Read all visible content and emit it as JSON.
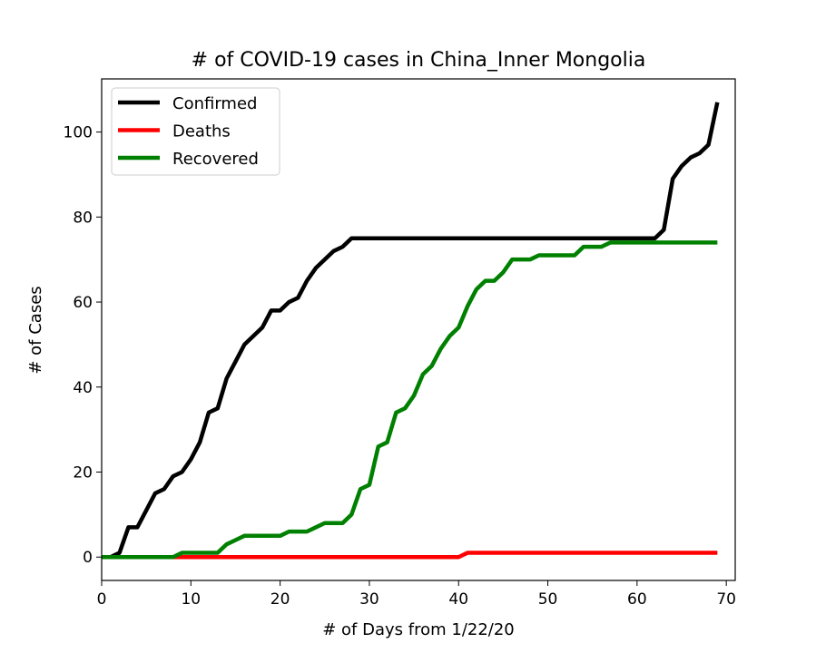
{
  "chart_data": {
    "type": "line",
    "title": "# of COVID-19 cases in China_Inner Mongolia",
    "xlabel": "# of Days from 1/22/20",
    "ylabel": "# of Cases",
    "xlim": [
      0,
      71
    ],
    "ylim": [
      -5.5,
      112.5
    ],
    "xticks": [
      0,
      10,
      20,
      30,
      40,
      50,
      60,
      70
    ],
    "yticks": [
      0,
      20,
      40,
      60,
      80,
      100
    ],
    "grid": false,
    "legend_position": "top-left",
    "series": [
      {
        "name": "Confirmed",
        "color": "#000000",
        "x": [
          0,
          1,
          2,
          3,
          4,
          5,
          6,
          7,
          8,
          9,
          10,
          11,
          12,
          13,
          14,
          15,
          16,
          17,
          18,
          19,
          20,
          21,
          22,
          23,
          24,
          25,
          26,
          27,
          28,
          29,
          30,
          31,
          32,
          33,
          34,
          35,
          36,
          37,
          38,
          39,
          40,
          41,
          42,
          43,
          44,
          45,
          46,
          47,
          48,
          49,
          50,
          51,
          52,
          53,
          54,
          55,
          56,
          57,
          58,
          59,
          60,
          61,
          62,
          63,
          64,
          65,
          66,
          67,
          68,
          69
        ],
        "values": [
          0,
          0,
          1,
          7,
          7,
          11,
          15,
          16,
          19,
          20,
          23,
          27,
          34,
          35,
          42,
          46,
          50,
          52,
          54,
          58,
          58,
          60,
          61,
          65,
          68,
          70,
          72,
          73,
          75,
          75,
          75,
          75,
          75,
          75,
          75,
          75,
          75,
          75,
          75,
          75,
          75,
          75,
          75,
          75,
          75,
          75,
          75,
          75,
          75,
          75,
          75,
          75,
          75,
          75,
          75,
          75,
          75,
          75,
          75,
          75,
          75,
          75,
          75,
          77,
          89,
          92,
          94,
          95,
          97,
          107
        ]
      },
      {
        "name": "Deaths",
        "color": "#ff0000",
        "x": [
          0,
          1,
          2,
          3,
          4,
          5,
          6,
          7,
          8,
          9,
          10,
          11,
          12,
          13,
          14,
          15,
          16,
          17,
          18,
          19,
          20,
          21,
          22,
          23,
          24,
          25,
          26,
          27,
          28,
          29,
          30,
          31,
          32,
          33,
          34,
          35,
          36,
          37,
          38,
          39,
          40,
          41,
          42,
          43,
          44,
          45,
          46,
          47,
          48,
          49,
          50,
          51,
          52,
          53,
          54,
          55,
          56,
          57,
          58,
          59,
          60,
          61,
          62,
          63,
          64,
          65,
          66,
          67,
          68,
          69
        ],
        "values": [
          0,
          0,
          0,
          0,
          0,
          0,
          0,
          0,
          0,
          0,
          0,
          0,
          0,
          0,
          0,
          0,
          0,
          0,
          0,
          0,
          0,
          0,
          0,
          0,
          0,
          0,
          0,
          0,
          0,
          0,
          0,
          0,
          0,
          0,
          0,
          0,
          0,
          0,
          0,
          0,
          0,
          1,
          1,
          1,
          1,
          1,
          1,
          1,
          1,
          1,
          1,
          1,
          1,
          1,
          1,
          1,
          1,
          1,
          1,
          1,
          1,
          1,
          1,
          1,
          1,
          1,
          1,
          1,
          1,
          1
        ]
      },
      {
        "name": "Recovered",
        "color": "#008000",
        "x": [
          0,
          1,
          2,
          3,
          4,
          5,
          6,
          7,
          8,
          9,
          10,
          11,
          12,
          13,
          14,
          15,
          16,
          17,
          18,
          19,
          20,
          21,
          22,
          23,
          24,
          25,
          26,
          27,
          28,
          29,
          30,
          31,
          32,
          33,
          34,
          35,
          36,
          37,
          38,
          39,
          40,
          41,
          42,
          43,
          44,
          45,
          46,
          47,
          48,
          49,
          50,
          51,
          52,
          53,
          54,
          55,
          56,
          57,
          58,
          59,
          60,
          61,
          62,
          63,
          64,
          65,
          66,
          67,
          68,
          69
        ],
        "values": [
          0,
          0,
          0,
          0,
          0,
          0,
          0,
          0,
          0,
          1,
          1,
          1,
          1,
          1,
          3,
          4,
          5,
          5,
          5,
          5,
          5,
          6,
          6,
          6,
          7,
          8,
          8,
          8,
          10,
          16,
          17,
          26,
          27,
          34,
          35,
          38,
          43,
          45,
          49,
          52,
          54,
          59,
          63,
          65,
          65,
          67,
          70,
          70,
          70,
          71,
          71,
          71,
          71,
          71,
          73,
          73,
          73,
          74,
          74,
          74,
          74,
          74,
          74,
          74,
          74,
          74,
          74,
          74,
          74,
          74
        ]
      }
    ]
  }
}
